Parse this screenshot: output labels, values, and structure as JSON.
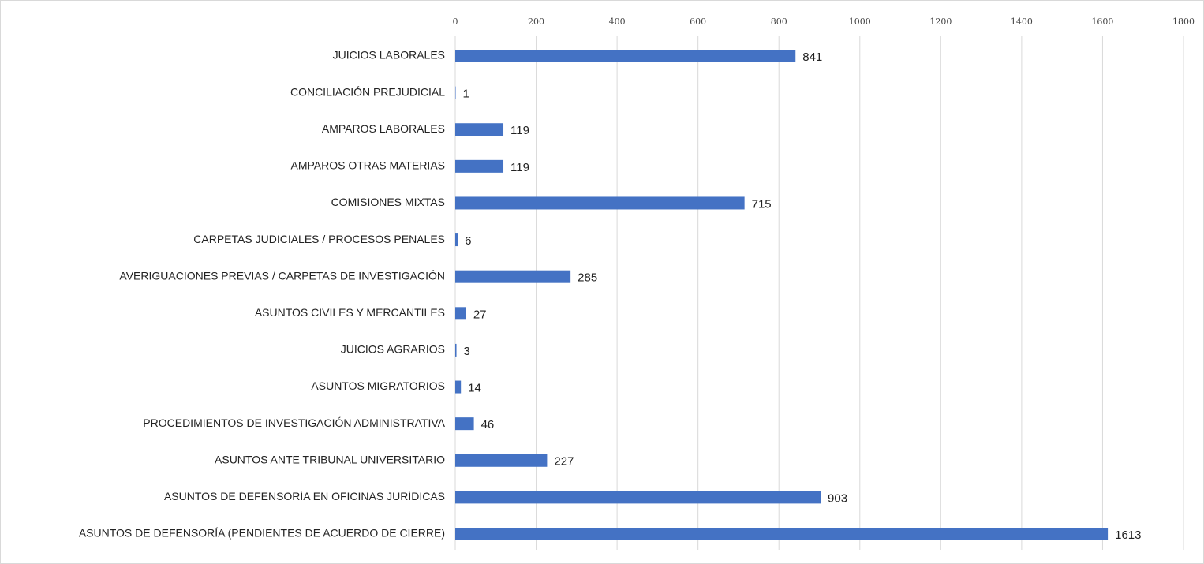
{
  "chart_data": {
    "type": "bar",
    "orientation": "horizontal",
    "categories": [
      "JUICIOS LABORALES",
      "CONCILIACIÓN PREJUDICIAL",
      "AMPAROS LABORALES",
      "AMPAROS OTRAS MATERIAS",
      "COMISIONES MIXTAS",
      "CARPETAS JUDICIALES / PROCESOS PENALES",
      "AVERIGUACIONES PREVIAS / CARPETAS DE INVESTIGACIÓN",
      "ASUNTOS CIVILES Y MERCANTILES",
      "JUICIOS AGRARIOS",
      "ASUNTOS MIGRATORIOS",
      "PROCEDIMIENTOS DE INVESTIGACIÓN ADMINISTRATIVA",
      "ASUNTOS ANTE TRIBUNAL UNIVERSITARIO",
      "ASUNTOS DE DEFENSORÍA EN OFICINAS JURÍDICAS",
      "ASUNTOS DE DEFENSORÍA (PENDIENTES DE ACUERDO DE CIERRE)"
    ],
    "values": [
      841,
      1,
      119,
      119,
      715,
      6,
      285,
      27,
      3,
      14,
      46,
      227,
      903,
      1613
    ],
    "color": "#4472c4",
    "xlim": [
      0,
      1800
    ],
    "xticks": [
      0,
      200,
      400,
      600,
      800,
      1000,
      1200,
      1400,
      1600,
      1800
    ],
    "grid": true
  }
}
